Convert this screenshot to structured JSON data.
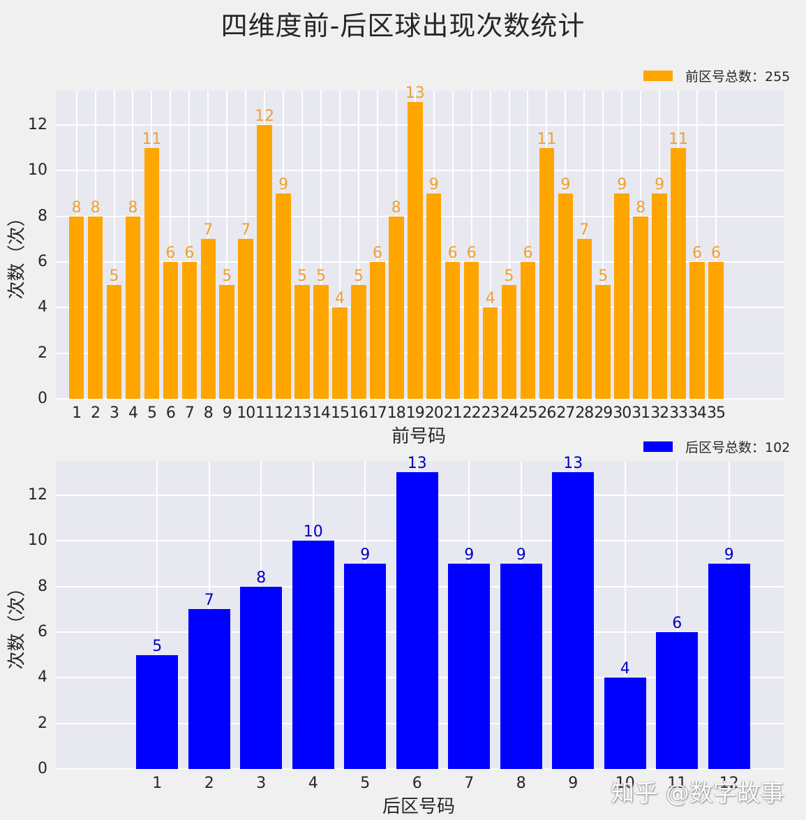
{
  "page": {
    "title": "四维度前-后区球出现次数统计",
    "watermark": "知乎 @数字故事"
  },
  "colors": {
    "background": "#f0f0f0",
    "plot_background": "#e8e8f0",
    "front_bar": "#ffa500",
    "front_label": "#f0a030",
    "back_bar": "#0000ff",
    "back_label": "#0000c0"
  },
  "chart_data": [
    {
      "type": "bar",
      "title": "",
      "xlabel": "前号码",
      "ylabel": "次数（次）",
      "legend": "前区号总数：255",
      "legend_position": "upper right (outside)",
      "grid": true,
      "ylim": [
        0,
        13.5
      ],
      "yticks": [
        0,
        2,
        4,
        6,
        8,
        10,
        12
      ],
      "categories": [
        "1",
        "2",
        "3",
        "4",
        "5",
        "6",
        "7",
        "8",
        "9",
        "10",
        "11",
        "12",
        "13",
        "14",
        "15",
        "16",
        "17",
        "18",
        "19",
        "20",
        "21",
        "22",
        "23",
        "24",
        "25",
        "26",
        "27",
        "28",
        "29",
        "30",
        "31",
        "32",
        "33",
        "34",
        "35"
      ],
      "values": [
        8,
        8,
        5,
        8,
        11,
        6,
        6,
        7,
        5,
        7,
        12,
        9,
        5,
        5,
        4,
        5,
        6,
        8,
        13,
        9,
        6,
        6,
        4,
        5,
        6,
        11,
        9,
        7,
        5,
        9,
        8,
        9,
        11,
        6,
        6
      ],
      "total": 255
    },
    {
      "type": "bar",
      "title": "",
      "xlabel": "后区号码",
      "ylabel": "次数（次）",
      "legend": "后区号总数：102",
      "legend_position": "upper right (outside)",
      "grid": true,
      "ylim": [
        0,
        13.5
      ],
      "yticks": [
        0,
        2,
        4,
        6,
        8,
        10,
        12
      ],
      "categories": [
        "1",
        "2",
        "3",
        "4",
        "5",
        "6",
        "7",
        "8",
        "9",
        "10",
        "11",
        "12"
      ],
      "values": [
        5,
        7,
        8,
        10,
        9,
        13,
        9,
        9,
        13,
        4,
        6,
        9
      ],
      "total": 102
    }
  ]
}
